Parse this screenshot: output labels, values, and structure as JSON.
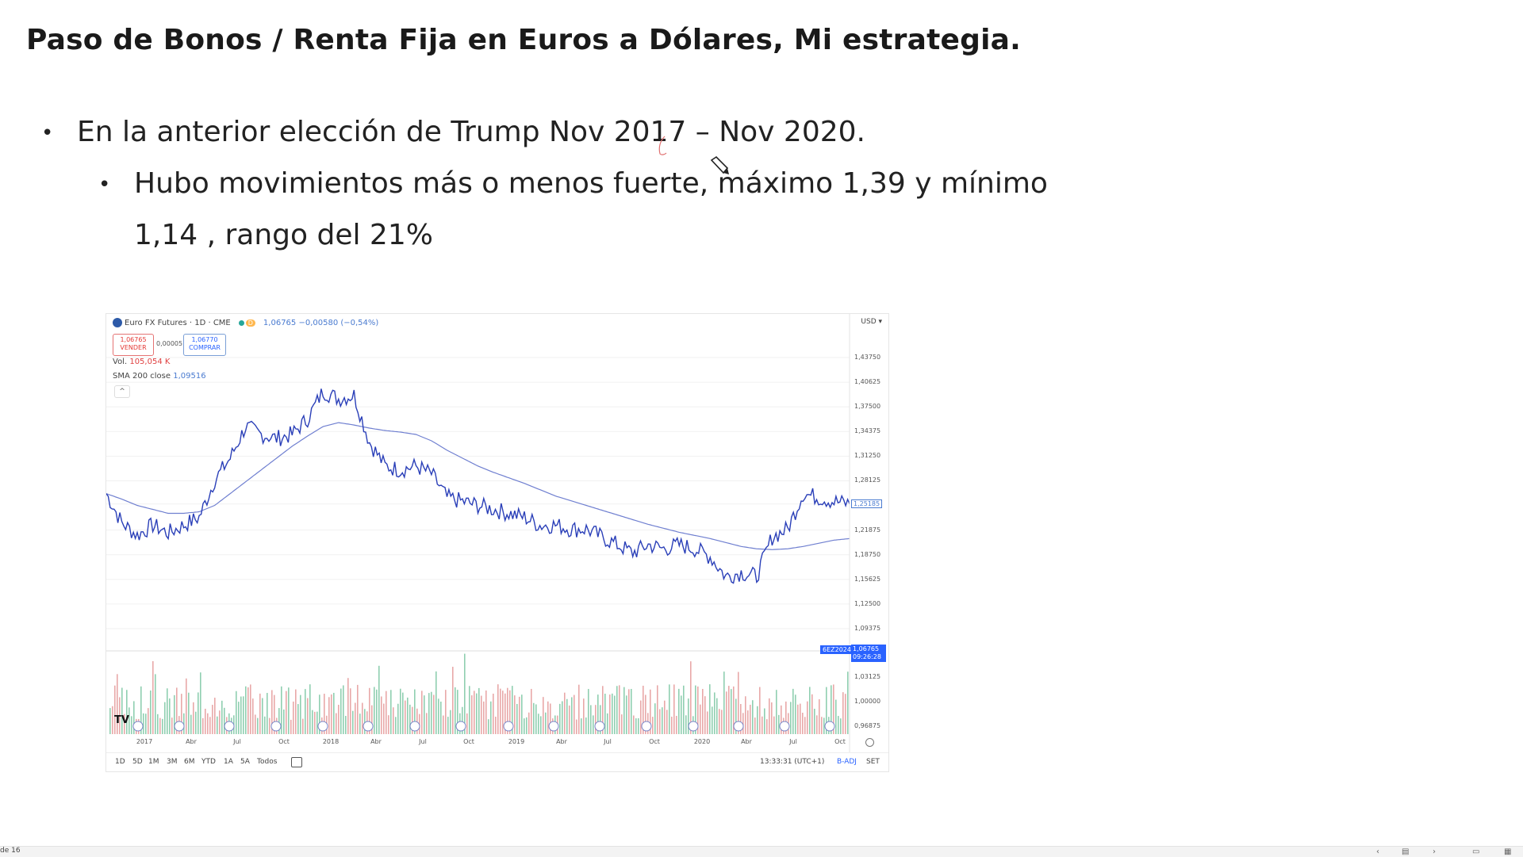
{
  "slide": {
    "title": "Paso de Bonos / Renta Fija en Euros a Dólares, Mi estrategia.",
    "bullets": [
      "En la anterior elección de Trump Nov 2017 – Nov 2020.",
      "Hubo movimientos más o menos fuerte, máximo 1,39 y mínimo",
      "1,14 , rango del 21%"
    ]
  },
  "chart_legend": {
    "symbol": "Euro FX Futures · 1D · CME",
    "interval_badge": "D",
    "change": "1,06765 −0,00580 (−0,54%)",
    "sell_price": "1,06765",
    "sell_label": "VENDER",
    "spread": "0,00005",
    "buy_price": "1,06770",
    "buy_label": "COMPRAR",
    "vol_label": "Vol.",
    "vol_value": "105,054 K",
    "sma_label": "SMA 200 close",
    "sma_value": "1,09516",
    "collapse": "^",
    "currency": "USD ▾",
    "contract": "6EZ2024",
    "last_price": "1,06765",
    "countdown": "09:26:28",
    "price_tag": "1,25185"
  },
  "range_bar": {
    "buttons": [
      "1D",
      "5D",
      "1M",
      "3M",
      "6M",
      "YTD",
      "1A",
      "5A",
      "Todos"
    ],
    "clock": "13:33:31 (UTC+1)",
    "adj": "B-ADJ",
    "set": "SET",
    "logo": "TV"
  },
  "status_bar": {
    "slide_counter": "de 16",
    "icons": [
      "chevron-left-icon",
      "slide-view-icon",
      "chevron-right-icon",
      "normal-view-icon",
      "grid-view-icon"
    ]
  },
  "chart_data": {
    "type": "line",
    "title": "",
    "price_axis": [
      "1,43750",
      "1,40625",
      "1,37500",
      "1,34375",
      "1,31250",
      "1,28125",
      "1,25185",
      "1,21875",
      "1,18750",
      "1,15625",
      "1,12500",
      "1,09375",
      "1,03125",
      "1,00000",
      "0,96875"
    ],
    "price_axis_values": [
      1.4375,
      1.40625,
      1.375,
      1.34375,
      1.3125,
      1.28125,
      1.25185,
      1.21875,
      1.1875,
      1.15625,
      1.125,
      1.09375,
      1.03125,
      1.0,
      0.96875
    ],
    "time_axis": [
      "2017",
      "Abr",
      "Jul",
      "Oct",
      "2018",
      "Abr",
      "Jul",
      "Oct",
      "2019",
      "Abr",
      "Jul",
      "Oct",
      "2020",
      "Abr",
      "Jul",
      "Oct"
    ],
    "x": [
      "2016-11",
      "2016-12",
      "2017-01",
      "2017-02",
      "2017-03",
      "2017-04",
      "2017-05",
      "2017-06",
      "2017-07",
      "2017-08",
      "2017-09",
      "2017-10",
      "2017-11",
      "2017-12",
      "2018-01",
      "2018-02",
      "2018-03",
      "2018-04",
      "2018-05",
      "2018-06",
      "2018-07",
      "2018-08",
      "2018-09",
      "2018-10",
      "2018-11",
      "2018-12",
      "2019-01",
      "2019-02",
      "2019-03",
      "2019-04",
      "2019-05",
      "2019-06",
      "2019-07",
      "2019-08",
      "2019-09",
      "2019-10",
      "2019-11",
      "2019-12",
      "2020-01",
      "2020-02",
      "2020-03",
      "2020-04",
      "2020-05",
      "2020-06",
      "2020-07",
      "2020-08",
      "2020-09",
      "2020-10",
      "2020-11"
    ],
    "series": [
      {
        "name": "Euro FX Futures",
        "color": "#2a3fb8",
        "values": [
          1.265,
          1.228,
          1.212,
          1.225,
          1.215,
          1.225,
          1.235,
          1.282,
          1.31,
          1.35,
          1.34,
          1.335,
          1.34,
          1.36,
          1.395,
          1.385,
          1.39,
          1.33,
          1.3,
          1.295,
          1.3,
          1.29,
          1.26,
          1.255,
          1.25,
          1.245,
          1.24,
          1.235,
          1.225,
          1.225,
          1.22,
          1.22,
          1.21,
          1.2,
          1.19,
          1.2,
          1.195,
          1.2,
          1.195,
          1.185,
          1.16,
          1.165,
          1.16,
          1.21,
          1.22,
          1.265,
          1.26,
          1.255,
          1.252
        ]
      },
      {
        "name": "SMA 200 close",
        "color": "#5b6fc7",
        "values": [
          1.265,
          1.258,
          1.25,
          1.245,
          1.24,
          1.24,
          1.242,
          1.25,
          1.265,
          1.28,
          1.295,
          1.31,
          1.325,
          1.338,
          1.35,
          1.355,
          1.352,
          1.348,
          1.345,
          1.343,
          1.34,
          1.332,
          1.32,
          1.31,
          1.3,
          1.292,
          1.285,
          1.278,
          1.27,
          1.262,
          1.256,
          1.25,
          1.244,
          1.238,
          1.232,
          1.226,
          1.221,
          1.216,
          1.212,
          1.208,
          1.203,
          1.198,
          1.195,
          1.194,
          1.195,
          1.198,
          1.202,
          1.206,
          1.208
        ]
      }
    ]
  }
}
